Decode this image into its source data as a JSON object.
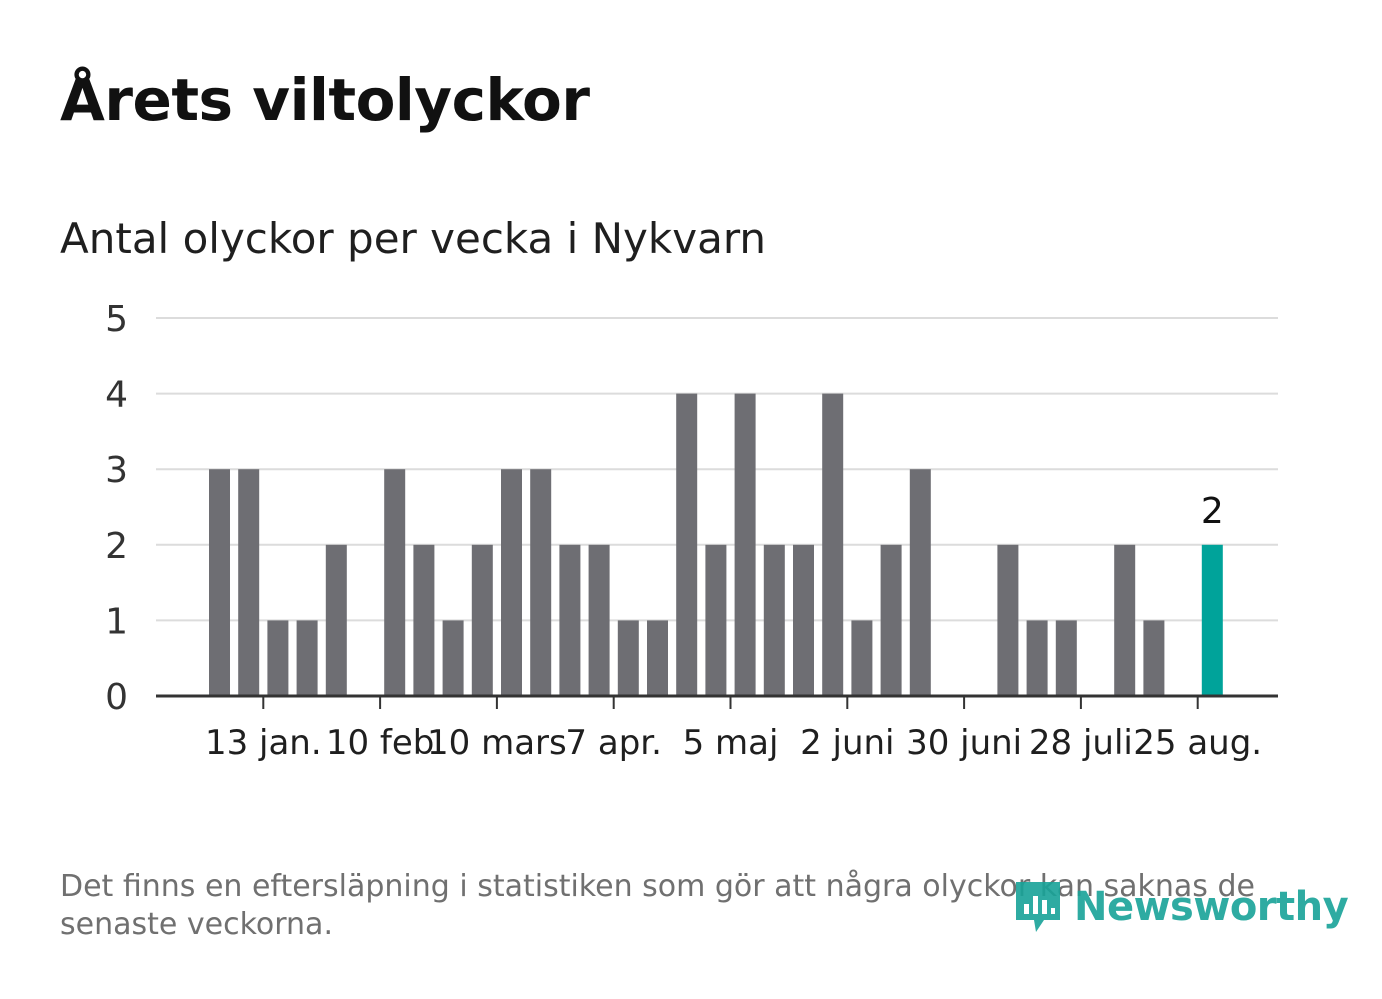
{
  "title": "Årets viltolyckor",
  "subtitle": "Antal olyckor per vecka i Nykvarn",
  "footnote": "Det finns en eftersläpning i statistiken som gör att några olyckor kan saknas de senaste veckorna.",
  "brand": {
    "name": "Newsworthy",
    "icon": "chart-bubble-icon",
    "color": "#18a398"
  },
  "chart_data": {
    "type": "bar",
    "title": "Antal olyckor per vecka i Nykvarn",
    "xlabel": "",
    "ylabel": "",
    "ylim": [
      0,
      5
    ],
    "yticks": [
      0,
      1,
      2,
      3,
      4,
      5
    ],
    "grid": true,
    "legend": "none",
    "colors": {
      "bar": "#6e6e73",
      "highlight": "#00a39a"
    },
    "values": [
      3,
      3,
      1,
      1,
      2,
      0,
      3,
      2,
      1,
      2,
      3,
      3,
      2,
      2,
      1,
      1,
      4,
      2,
      4,
      2,
      2,
      4,
      1,
      2,
      3,
      0,
      0,
      2,
      1,
      1,
      0,
      2,
      1,
      0,
      2
    ],
    "x_ticks": [
      {
        "label": "13 jan.",
        "index": 1.5
      },
      {
        "label": "10 feb",
        "index": 5.5
      },
      {
        "label": "10 mars",
        "index": 9.5
      },
      {
        "label": "7 apr.",
        "index": 13.5
      },
      {
        "label": "5 maj",
        "index": 17.5
      },
      {
        "label": "2 juni",
        "index": 21.5
      },
      {
        "label": "30 juni",
        "index": 25.5
      },
      {
        "label": "28 juli",
        "index": 29.5
      },
      {
        "label": "25 aug.",
        "index": 33.5
      }
    ],
    "highlight_index": 34,
    "highlight_label": "2"
  }
}
